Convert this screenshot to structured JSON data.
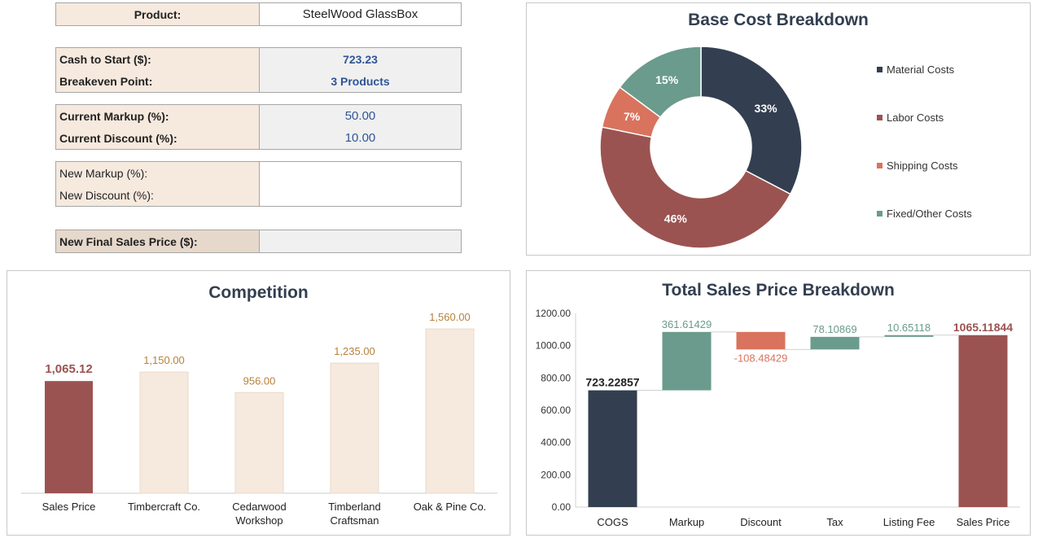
{
  "form": {
    "product": {
      "label": "Product:",
      "value": "SteelWood GlassBox"
    },
    "cash_to_start": {
      "label": "Cash to Start ($):",
      "value": "723.23"
    },
    "breakeven": {
      "label": "Breakeven Point:",
      "value": "3 Products"
    },
    "current_markup": {
      "label": "Current Markup (%):",
      "value": "50.00"
    },
    "current_discount": {
      "label": "Current Discount (%):",
      "value": "10.00"
    },
    "new_markup": {
      "label": "New Markup (%):",
      "value": ""
    },
    "new_discount": {
      "label": "New Discount (%):",
      "value": ""
    },
    "new_final_price": {
      "label": "New Final Sales Price ($):",
      "value": ""
    }
  },
  "chart_data": [
    {
      "id": "base_cost",
      "type": "pie",
      "title": "Base Cost Breakdown",
      "categories": [
        "Material Costs",
        "Labor Costs",
        "Shipping Costs",
        "Fixed/Other Costs"
      ],
      "values": [
        33,
        46,
        7,
        15
      ],
      "labels": [
        "33%",
        "46%",
        "7%",
        "15%"
      ],
      "colors": [
        "#333f50",
        "#9b5351",
        "#d9735e",
        "#6a9b8c"
      ],
      "legend": "right"
    },
    {
      "id": "competition",
      "type": "bar",
      "title": "Competition",
      "categories": [
        "Sales Price",
        "Timbercraft Co.",
        "Cedarwood Workshop",
        "Timberland Craftsman",
        "Oak & Pine Co."
      ],
      "category_lines": [
        [
          "Sales Price"
        ],
        [
          "Timbercraft Co."
        ],
        [
          "Cedarwood",
          "Workshop"
        ],
        [
          "Timberland",
          "Craftsman"
        ],
        [
          "Oak & Pine Co."
        ]
      ],
      "values": [
        1065.12,
        1150.0,
        956.0,
        1235.0,
        1560.0
      ],
      "labels": [
        "1,065.12",
        "1,150.00",
        "956.00",
        "1,235.00",
        "1,560.00"
      ],
      "colors": [
        "#9b5351",
        "#f6e9de",
        "#f6e9de",
        "#f6e9de",
        "#f6e9de"
      ],
      "label_colors": [
        "#9b5351",
        "#b7813c",
        "#b7813c",
        "#b7813c",
        "#b7813c"
      ],
      "ylim": [
        0,
        1700
      ]
    },
    {
      "id": "waterfall",
      "type": "waterfall",
      "title": "Total Sales Price Breakdown",
      "categories": [
        "COGS",
        "Markup",
        "Discount",
        "Tax",
        "Listing Fee",
        "Sales Price"
      ],
      "values": [
        723.22857,
        361.61429,
        -108.48429,
        78.10869,
        10.65118,
        1065.11844
      ],
      "labels": [
        "723.22857",
        "361.61429",
        "-108.48429",
        "78.10869",
        "10.65118",
        "1065.11844"
      ],
      "kinds": [
        "total",
        "delta",
        "delta",
        "delta",
        "delta",
        "total"
      ],
      "colors": [
        "#333f50",
        "#6a9b8c",
        "#d9735e",
        "#6a9b8c",
        "#6a9b8c",
        "#9b5351"
      ],
      "label_colors": [
        "#222222",
        "#6a9b8c",
        "#d9735e",
        "#6a9b8c",
        "#6a9b8c",
        "#9b5351"
      ],
      "yticks": [
        "0.00",
        "200.00",
        "400.00",
        "600.00",
        "800.00",
        "1000.00",
        "1200.00"
      ],
      "ylim": [
        0,
        1200
      ]
    }
  ]
}
